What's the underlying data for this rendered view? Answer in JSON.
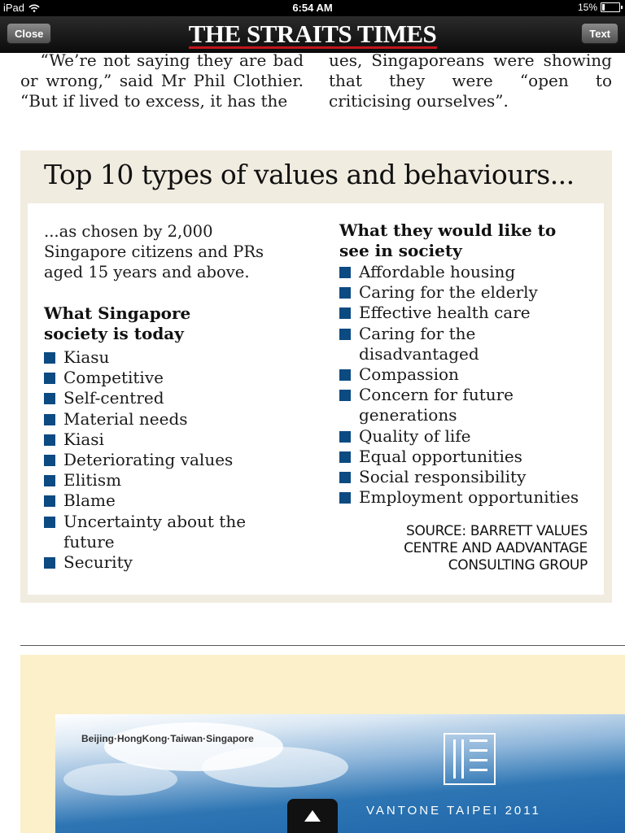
{
  "status_bar": {
    "device": "iPad",
    "time": "6:54 AM",
    "battery": "15%",
    "battery_level": 0.15,
    "icons": [
      "wifi-icon",
      "battery-icon"
    ]
  },
  "nav": {
    "close_label": "Close",
    "masthead": "THE STRAITS TIMES",
    "text_label": "Text",
    "masthead_rule_color": "#c4151c"
  },
  "article": {
    "left_column": "   “We’re not saying they are bad or wrong,” said Mr Phil Clothier. “But if lived to excess, it has the",
    "right_column": "ues, Singaporeans were showing that they were “open to criticising ourselves”."
  },
  "infographic": {
    "title": "Top 10 types of values and behaviours...",
    "intro": "...as chosen by 2,000 Singapore citizens and PRs aged 15 years and above.",
    "today_heading": "What Singapore society is today",
    "today_items": [
      "Kiasu",
      "Competitive",
      "Self-centred",
      "Material needs",
      "Kiasi",
      "Deteriorating values",
      "Elitism",
      "Blame",
      "Uncertainty about the future",
      "Security"
    ],
    "like_heading": "What they would like to see in society",
    "like_items": [
      "Affordable housing",
      "Caring for the elderly",
      "Effective health care",
      "Caring for the disadvantaged",
      "Compassion",
      "Concern for future generations",
      "Quality of life",
      "Equal opportunities",
      "Social responsibility",
      "Employment opportunities"
    ],
    "source": "SOURCE: BARRETT VALUES CENTRE AND AADVANTAGE CONSULTING GROUP",
    "bullet_color": "#0c4a82",
    "box_color": "#f1ece0"
  },
  "ad": {
    "cities": "Beijing·HongKong·Taiwan·Singapore",
    "brand": "VANTONE TAIPEI 2011"
  },
  "controls": {
    "up_icon": "triangle-up-icon"
  }
}
